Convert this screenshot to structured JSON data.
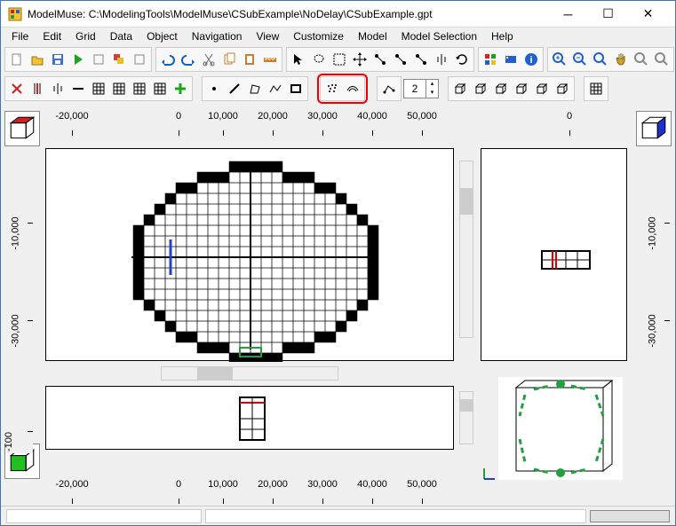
{
  "window": {
    "title": "ModelMuse: C:\\ModelingTools\\ModelMuse\\CSubExample\\NoDelay\\CSubExample.gpt"
  },
  "menu": [
    "File",
    "Edit",
    "Grid",
    "Data",
    "Object",
    "Navigation",
    "View",
    "Customize",
    "Model",
    "Model Selection",
    "Help"
  ],
  "toolbar_row1": {
    "group1": [
      {
        "name": "new-file-icon",
        "color": "#fff",
        "stroke": "#888"
      },
      {
        "name": "open-file-icon",
        "color": "#f4c430"
      },
      {
        "name": "save-icon",
        "color": "#3a6fd8"
      },
      {
        "name": "run-icon",
        "color": "#1aa51a"
      },
      {
        "name": "import-icon",
        "color": "#888"
      },
      {
        "name": "layers-icon",
        "color": "#d04040",
        "accent": "#e8c020"
      },
      {
        "name": "export-icon",
        "color": "#888"
      }
    ],
    "group2": [
      {
        "name": "undo-icon",
        "color": "#1060c0"
      },
      {
        "name": "redo-icon",
        "color": "#1060c0"
      },
      {
        "name": "cut-icon",
        "color": "#666"
      },
      {
        "name": "copy-icon",
        "color": "#c88030"
      },
      {
        "name": "paste-icon",
        "color": "#c88030"
      },
      {
        "name": "ruler-icon",
        "color": "#c88030"
      }
    ],
    "group3": [
      {
        "name": "select-icon",
        "color": "#000"
      },
      {
        "name": "lasso-icon",
        "color": "#000"
      },
      {
        "name": "select-all-icon",
        "color": "#000"
      },
      {
        "name": "move-icon",
        "color": "#000"
      },
      {
        "name": "vertex-add-icon",
        "color": "#000"
      },
      {
        "name": "vertex-insert-icon",
        "color": "#000"
      },
      {
        "name": "vertex-del-icon",
        "color": "#000"
      },
      {
        "name": "split-icon",
        "color": "#000"
      },
      {
        "name": "rotate-icon",
        "color": "#000"
      }
    ],
    "group4": [
      {
        "name": "color-icon",
        "color": "#e02020",
        "accent": "#20a020"
      },
      {
        "name": "palette-icon",
        "color": "#2060d0"
      },
      {
        "name": "info-icon",
        "color": "#2060d0"
      }
    ],
    "group5": [
      {
        "name": "zoom-in-icon",
        "color": "#2060d0"
      },
      {
        "name": "zoom-out-icon",
        "color": "#2060d0"
      },
      {
        "name": "zoom-fit-icon",
        "color": "#2060d0"
      },
      {
        "name": "pan-icon",
        "color": "#d0a030"
      },
      {
        "name": "zoom-region-icon",
        "color": "#888"
      },
      {
        "name": "zoom-extent-icon",
        "color": "#888"
      }
    ]
  },
  "toolbar_row2": {
    "group1": [
      {
        "name": "delete-row-icon"
      },
      {
        "name": "delete-col-icon"
      },
      {
        "name": "split-vert-icon"
      },
      {
        "name": "horiz-line-icon"
      },
      {
        "name": "grid-small-icon"
      },
      {
        "name": "grid-rows-icon"
      },
      {
        "name": "grid-cols-icon"
      },
      {
        "name": "grid-dense-icon"
      },
      {
        "name": "add-green-icon",
        "color": "#1aa51a"
      }
    ],
    "group2": [
      {
        "name": "point-icon"
      },
      {
        "name": "line-icon"
      },
      {
        "name": "polygon-icon"
      },
      {
        "name": "polyline-icon"
      },
      {
        "name": "rect-icon"
      }
    ],
    "group_hl": [
      {
        "name": "scatter-icon"
      },
      {
        "name": "contour-icon"
      }
    ],
    "group3": [
      {
        "name": "interpolate-icon"
      }
    ],
    "layer_value": "2",
    "group4": [
      {
        "name": "box-front-icon"
      },
      {
        "name": "box-side-icon"
      },
      {
        "name": "box-top-icon"
      },
      {
        "name": "box-iso-icon"
      },
      {
        "name": "box-shade-icon"
      },
      {
        "name": "box-wire-icon"
      }
    ],
    "group5": [
      {
        "name": "grid-view-icon"
      }
    ]
  },
  "rulers": {
    "top_main": {
      "labels": [
        "-20,000",
        "0",
        "10,000",
        "20,000",
        "30,000",
        "40,000",
        "50,000"
      ],
      "positions": [
        80,
        200,
        250,
        306,
        362,
        418,
        474
      ]
    },
    "top_side": {
      "labels": [
        "0"
      ],
      "positions": [
        640
      ]
    },
    "left_main": {
      "labels": [
        "-10,000",
        "-30,000"
      ],
      "positions": [
        230,
        340
      ]
    },
    "left_front": {
      "labels": [
        "-100"
      ],
      "positions": [
        465
      ]
    },
    "right_side": {
      "labels": [
        "-30,000",
        "-10,000"
      ],
      "positions": [
        340,
        230
      ]
    },
    "bottom_main": {
      "labels": [
        "-20,000",
        "0",
        "10,000",
        "20,000",
        "30,000",
        "40,000",
        "50,000"
      ],
      "positions": [
        80,
        200,
        250,
        306,
        362,
        418,
        474
      ]
    }
  },
  "colors": {
    "cube_top": "#d02020",
    "cube_side": "#2030d0",
    "cube_front": "#20c020",
    "grid_line": "#000",
    "highlight_red": "#e00000",
    "highlight_blue": "#2040d0",
    "highlight_green": "#20a040"
  }
}
